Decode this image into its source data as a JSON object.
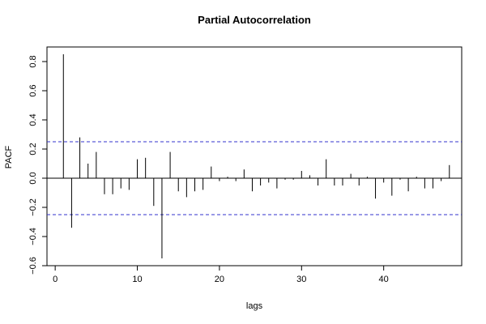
{
  "chart_data": {
    "type": "bar",
    "title": "Partial Autocorrelation",
    "xlabel": "lags",
    "ylabel": "PACF",
    "xlim": [
      -1,
      49.5
    ],
    "ylim": [
      -0.6,
      0.9
    ],
    "x_ticks": [
      0,
      10,
      20,
      30,
      40
    ],
    "x_tick_labels": [
      "0",
      "10",
      "20",
      "30",
      "40"
    ],
    "y_ticks": [
      -0.6,
      -0.4,
      -0.2,
      0.0,
      0.2,
      0.4,
      0.6,
      0.8
    ],
    "y_tick_labels": [
      "−0.6",
      "−0.4",
      "−0.2",
      "0.0",
      "0.2",
      "0.4",
      "0.6",
      "0.8"
    ],
    "lags": [
      1,
      2,
      3,
      4,
      5,
      6,
      7,
      8,
      9,
      10,
      11,
      12,
      13,
      14,
      15,
      16,
      17,
      18,
      19,
      20,
      21,
      22,
      23,
      24,
      25,
      26,
      27,
      28,
      29,
      30,
      31,
      32,
      33,
      34,
      35,
      36,
      37,
      38,
      39,
      40,
      41,
      42,
      43,
      44,
      45,
      46,
      47,
      48
    ],
    "values": [
      0.85,
      -0.34,
      0.28,
      0.1,
      0.18,
      -0.11,
      -0.11,
      -0.07,
      -0.08,
      0.13,
      0.14,
      -0.19,
      -0.55,
      0.18,
      -0.09,
      -0.13,
      -0.09,
      -0.08,
      0.08,
      -0.02,
      0.01,
      -0.02,
      0.06,
      -0.09,
      -0.05,
      -0.03,
      -0.07,
      -0.01,
      -0.01,
      0.05,
      0.02,
      -0.05,
      0.13,
      -0.05,
      -0.05,
      0.03,
      -0.05,
      0.01,
      -0.14,
      -0.03,
      -0.12,
      -0.01,
      -0.09,
      0.01,
      -0.07,
      -0.07,
      -0.02,
      0.09
    ],
    "confidence_bound": 0.25,
    "grid": false,
    "colors": {
      "bars": "#000000",
      "zero_line": "#000000",
      "bounds": "#3333cc",
      "axes": "#000000"
    }
  }
}
